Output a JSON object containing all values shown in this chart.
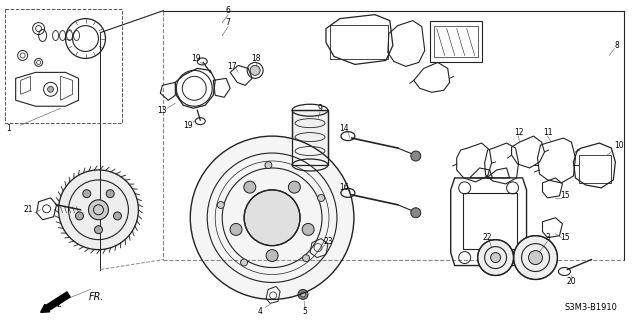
{
  "part_code": "S3M3-B1910",
  "bg_color": "#ffffff",
  "line_color": "#222222",
  "fig_width": 6.34,
  "fig_height": 3.2,
  "dpi": 100
}
